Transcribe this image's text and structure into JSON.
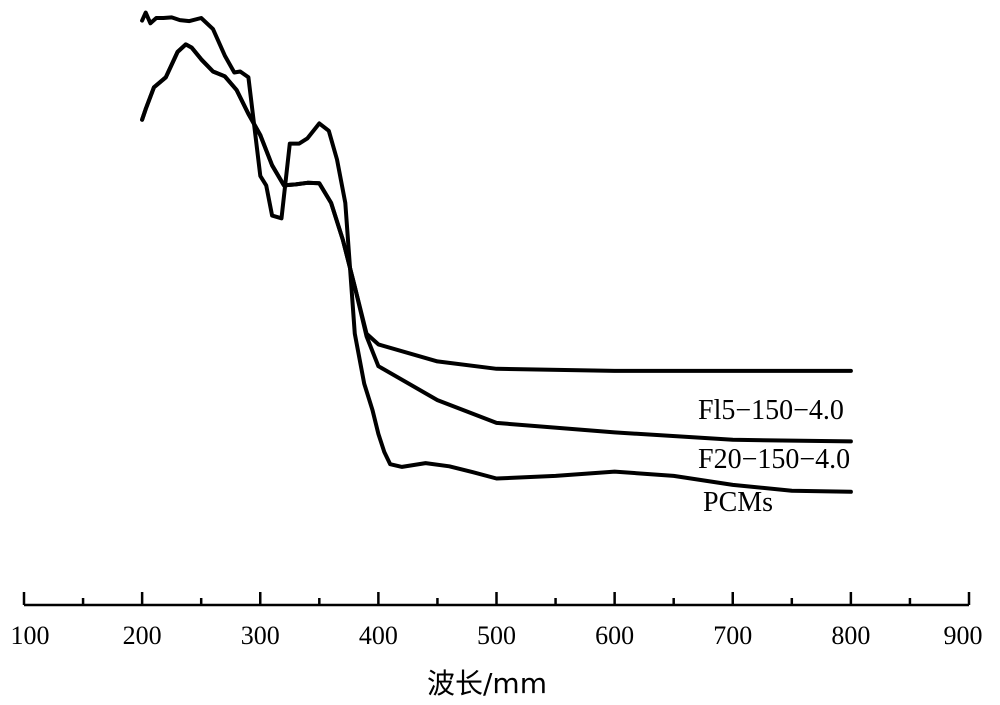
{
  "chart_data": {
    "type": "line",
    "xlabel": "波长/mm",
    "ylabel": "",
    "xlim": [
      100,
      900
    ],
    "ylim": [
      0,
      100
    ],
    "x_ticks": [
      "100",
      "200",
      "300",
      "400",
      "500",
      "600",
      "700",
      "800",
      "900"
    ],
    "grid": false,
    "series": [
      {
        "name": "PCMs",
        "x": [
          200,
          203,
          207,
          212,
          218,
          225,
          232,
          240,
          250,
          260,
          270,
          278,
          283,
          290,
          300,
          305,
          310,
          318,
          325,
          333,
          340,
          350,
          358,
          365,
          372,
          380,
          388,
          395,
          400,
          405,
          410,
          420,
          440,
          460,
          480,
          500,
          550,
          600,
          650,
          700,
          750,
          800
        ],
        "y": [
          98,
          99.5,
          97.5,
          98.5,
          98.5,
          98.6,
          98.1,
          97.9,
          98.5,
          96.4,
          91.4,
          88.2,
          88.4,
          87.3,
          68.7,
          66.9,
          61.2,
          60.7,
          74.8,
          74.8,
          75.8,
          78.6,
          77.2,
          71.8,
          63.6,
          38.9,
          29.5,
          24.5,
          20,
          16.6,
          14.3,
          13.8,
          14.5,
          13.9,
          12.8,
          11.6,
          12.1,
          12.9,
          12.1,
          10.4,
          9.3,
          9.1
        ]
      },
      {
        "name": "Fl5−150−4.0",
        "x": [
          200,
          203,
          210,
          220,
          230,
          237,
          242,
          250,
          260,
          270,
          280,
          290,
          300,
          310,
          320,
          330,
          340,
          350,
          360,
          370,
          380,
          390,
          400,
          450,
          500,
          600,
          700,
          800
        ],
        "y": [
          79.3,
          81.3,
          85.4,
          87.3,
          92.1,
          93.5,
          92.9,
          90.7,
          88.4,
          87.5,
          84.9,
          80.4,
          76.4,
          70.7,
          66.9,
          67.1,
          67.4,
          67.3,
          63.6,
          56.6,
          47.8,
          38.9,
          36.9,
          33.7,
          32.3,
          31.9,
          31.9,
          31.9
        ]
      },
      {
        "name": "F20−150−4.0",
        "x": [
          200,
          203,
          210,
          220,
          230,
          237,
          242,
          250,
          260,
          270,
          280,
          290,
          300,
          310,
          320,
          330,
          340,
          350,
          360,
          370,
          380,
          390,
          400,
          450,
          500,
          600,
          700,
          800
        ],
        "y": [
          79.3,
          81.3,
          85.4,
          87.3,
          92.1,
          93.5,
          92.9,
          90.7,
          88.4,
          87.5,
          84.9,
          80.4,
          76.4,
          70.7,
          66.9,
          67.1,
          67.4,
          67.3,
          63.6,
          56.6,
          47.8,
          38.4,
          32.8,
          26.4,
          22.1,
          20.3,
          18.9,
          18.6
        ]
      }
    ]
  }
}
